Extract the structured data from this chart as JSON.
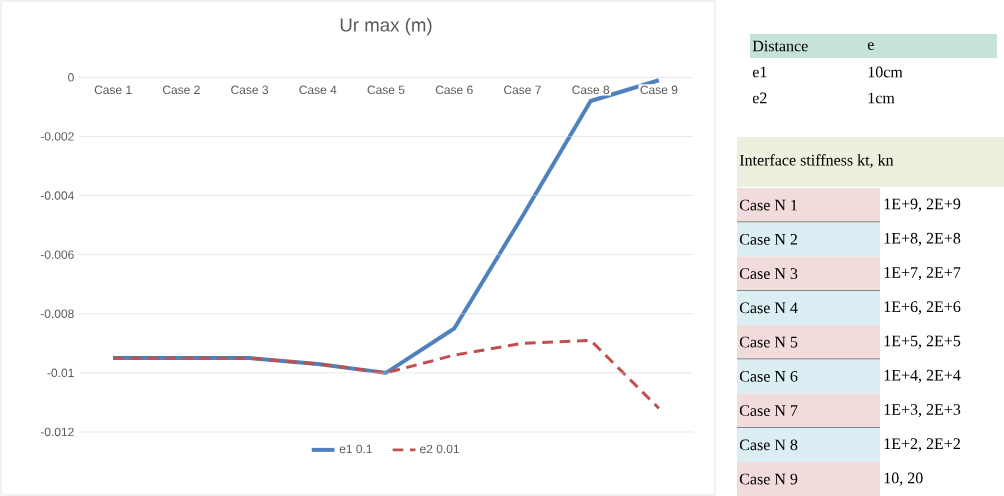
{
  "chart_data": [
    {
      "type": "line",
      "title": "Ur max (m)",
      "categories": [
        "Case 1",
        "Case 2",
        "Case 3",
        "Case 4",
        "Case 5",
        "Case 6",
        "Case 7",
        "Case 8",
        "Case 9"
      ],
      "series": [
        {
          "name": "e1 0.1",
          "color": "#4f81bd",
          "line_style": "solid",
          "values": [
            -0.0095,
            -0.0095,
            -0.0095,
            -0.0097,
            -0.01,
            -0.0085,
            -0.0047,
            -0.0008,
            -0.0001
          ]
        },
        {
          "name": "e2 0.01",
          "color": "#c0504d",
          "line_style": "dashed",
          "values": [
            -0.0095,
            -0.0095,
            -0.0095,
            -0.0097,
            -0.01,
            -0.0094,
            -0.009,
            -0.0089,
            -0.0112
          ]
        }
      ],
      "ylim": [
        -0.012,
        0
      ],
      "yticks": [
        -0.012,
        -0.01,
        -0.008,
        -0.006,
        -0.004,
        -0.002,
        0
      ],
      "grid": "y",
      "legend": "bottom"
    },
    {
      "type": "other",
      "annotations": [
        "Distance",
        "e",
        "e1",
        "10cm",
        "e2",
        "1cm"
      ]
    },
    {
      "type": "other",
      "title": "Interface stiffness kt, kn",
      "annotations": [
        "Case N 1",
        "1E+9, 2E+9",
        "Case N 2",
        "1E+8, 2E+8",
        "Case N 3",
        "1E+7, 2E+7",
        "Case N 4",
        "1E+6, 2E+6",
        "Case N 5",
        "1E+5, 2E+5",
        "Case N 6",
        "1E+4, 2E+4",
        "Case N 7",
        "1E+3, 2E+3",
        "Case N 8",
        "1E+2, 2E+2",
        "Case N 9",
        "10, 20"
      ]
    }
  ]
}
